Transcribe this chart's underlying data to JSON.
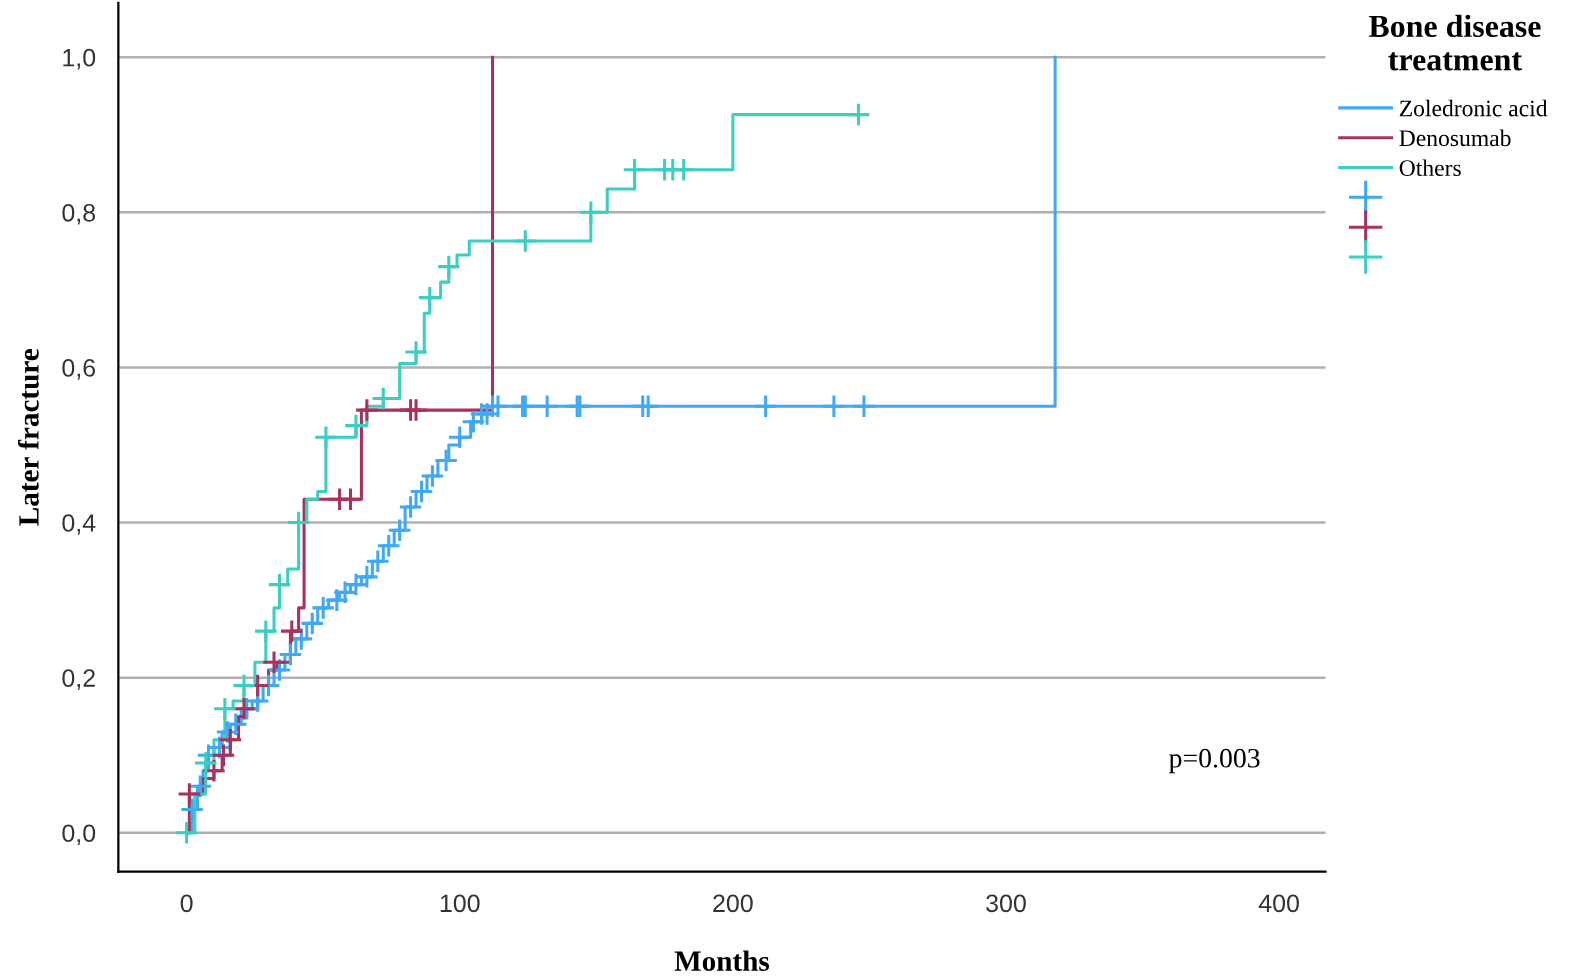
{
  "chart_data": {
    "type": "step",
    "xlabel": "Months",
    "ylabel": "Later fracture",
    "legend_title": "Bone disease treatment",
    "legend": "top right",
    "grid": "y",
    "marker": "none",
    "line_style": "solid",
    "xlim": [
      -25,
      417
    ],
    "xticks": [
      0,
      100,
      200,
      300,
      400
    ],
    "ylim": [
      -0.05,
      1.07
    ],
    "yticks": [
      {
        "value": 0,
        "label": "0,0"
      },
      {
        "value": 0.2,
        "label": "0,2"
      },
      {
        "value": 0.4,
        "label": "0,4"
      },
      {
        "value": 0.6,
        "label": "0,6"
      },
      {
        "value": 0.8,
        "label": "0,8"
      },
      {
        "value": 1.0,
        "label": "1,0"
      }
    ],
    "annotations": [
      "p=0.003"
    ],
    "series": [
      {
        "name": "Zoledronic acid",
        "color": "#3fa9f5",
        "x": [
          0,
          2,
          4,
          6,
          8,
          10,
          13,
          16,
          20,
          24,
          28,
          32,
          36,
          40,
          44,
          48,
          52,
          56,
          60,
          64,
          68,
          72,
          76,
          80,
          84,
          88,
          92,
          96,
          100,
          104,
          108,
          112,
          318,
          318
        ],
        "values": [
          0,
          0.03,
          0.06,
          0.08,
          0.1,
          0.11,
          0.13,
          0.14,
          0.16,
          0.17,
          0.19,
          0.21,
          0.23,
          0.25,
          0.27,
          0.29,
          0.3,
          0.31,
          0.32,
          0.33,
          0.35,
          0.37,
          0.39,
          0.42,
          0.44,
          0.46,
          0.48,
          0.5,
          0.51,
          0.53,
          0.54,
          0.55,
          0.55,
          1.0
        ]
      },
      {
        "name": "Denosumab",
        "color": "#a8325e",
        "x": [
          0,
          1,
          6,
          10,
          13,
          16,
          19,
          22,
          26,
          30,
          33,
          38,
          41,
          43,
          64,
          112
        ],
        "values": [
          0,
          0.05,
          0.07,
          0.08,
          0.1,
          0.12,
          0.15,
          0.16,
          0.19,
          0.21,
          0.22,
          0.26,
          0.29,
          0.43,
          0.545,
          1.0
        ]
      },
      {
        "name": "Others",
        "color": "#3ccfc0",
        "x": [
          0,
          3,
          7,
          10,
          14,
          17,
          21,
          25,
          29,
          32,
          34,
          37,
          41,
          44,
          48,
          51,
          62,
          66,
          72,
          78,
          84,
          87,
          89,
          93,
          96,
          99,
          103.5,
          148,
          154,
          164,
          200,
          246
        ],
        "values": [
          0,
          0.05,
          0.09,
          0.12,
          0.16,
          0.17,
          0.19,
          0.22,
          0.26,
          0.29,
          0.32,
          0.34,
          0.4,
          0.43,
          0.44,
          0.51,
          0.525,
          0.55,
          0.56,
          0.605,
          0.62,
          0.67,
          0.69,
          0.71,
          0.73,
          0.745,
          0.763,
          0.8,
          0.83,
          0.855,
          0.926,
          0.926
        ]
      },
      {
        "type": "scatter",
        "marker": "cross",
        "color": "#3fa9f5",
        "x": [
          2,
          5,
          8,
          12,
          15,
          18,
          22,
          26,
          30,
          34,
          38,
          42,
          46,
          50,
          55,
          58,
          62,
          66,
          70,
          74,
          78,
          82,
          86,
          90,
          95,
          100,
          105,
          108,
          110,
          112,
          114,
          123,
          124,
          132,
          143,
          144,
          167,
          169,
          212,
          237,
          248
        ],
        "values": [
          0.03,
          0.06,
          0.1,
          0.11,
          0.13,
          0.14,
          0.16,
          0.17,
          0.19,
          0.21,
          0.23,
          0.25,
          0.27,
          0.29,
          0.3,
          0.31,
          0.32,
          0.33,
          0.35,
          0.37,
          0.39,
          0.42,
          0.44,
          0.46,
          0.48,
          0.51,
          0.53,
          0.54,
          0.54,
          0.55,
          0.55,
          0.55,
          0.55,
          0.55,
          0.55,
          0.55,
          0.55,
          0.55,
          0.55,
          0.55,
          0.55
        ]
      },
      {
        "type": "scatter",
        "marker": "cross",
        "color": "#a8325e",
        "x": [
          1,
          10,
          13.5,
          16,
          21,
          26,
          32,
          38.5,
          56,
          60,
          66,
          82,
          84
        ],
        "values": [
          0.05,
          0.08,
          0.1,
          0.12,
          0.16,
          0.19,
          0.22,
          0.26,
          0.43,
          0.43,
          0.545,
          0.545,
          0.545
        ]
      },
      {
        "type": "scatter",
        "marker": "cross",
        "color": "#3ccfc0",
        "x": [
          0,
          7,
          14,
          21,
          29,
          34,
          41,
          51,
          62,
          72,
          84,
          89,
          96,
          124,
          148,
          164,
          175,
          178,
          182,
          246
        ],
        "values": [
          0,
          0.09,
          0.16,
          0.19,
          0.26,
          0.32,
          0.4,
          0.51,
          0.525,
          0.56,
          0.62,
          0.69,
          0.73,
          0.763,
          0.8,
          0.855,
          0.855,
          0.855,
          0.855,
          0.926
        ]
      }
    ]
  }
}
